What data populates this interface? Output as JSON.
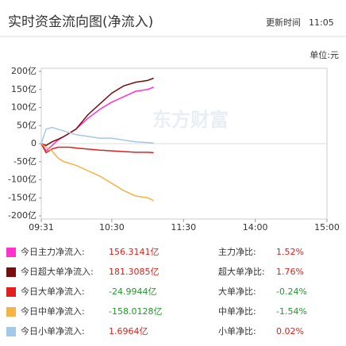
{
  "chart_data": {
    "type": "line",
    "title": "实时资金流向图(净流入)",
    "update_label": "更新时间",
    "update_time": "11:05",
    "unit": "单位:元",
    "watermark": "东方财富",
    "x": [
      "09:31",
      "09:35",
      "09:40",
      "09:45",
      "09:50",
      "09:55",
      "10:00",
      "10:10",
      "10:20",
      "10:30",
      "10:40",
      "10:50",
      "11:00",
      "11:05"
    ],
    "xlim": [
      "09:31",
      "15:00"
    ],
    "xticks": [
      "09:31",
      "10:30",
      "11:30",
      "14:00",
      "15:00"
    ],
    "ylim": [
      -200,
      200
    ],
    "yticks": [
      {
        "value": 200,
        "label": "200亿"
      },
      {
        "value": 150,
        "label": "150亿"
      },
      {
        "value": 100,
        "label": "100亿"
      },
      {
        "value": 50,
        "label": "50亿"
      },
      0,
      {
        "value": -50,
        "label": "-50亿"
      },
      {
        "value": -100,
        "label": "-100亿"
      },
      {
        "value": -150,
        "label": "-150亿"
      },
      {
        "value": -200,
        "label": "-200亿"
      }
    ],
    "positive_color": "#e0201a",
    "negative_color": "#1f9a2a",
    "series": [
      {
        "name": "今日主力净流入:",
        "color": "#ff33cc",
        "values": [
          0,
          -20,
          -5,
          10,
          20,
          30,
          40,
          70,
          95,
          115,
          130,
          145,
          150,
          156.3141
        ],
        "net_inflow": 156.3141,
        "net_inflow_label": "156.3141亿",
        "ratio_name": "主力净比:",
        "ratio": 1.52,
        "ratio_label": "1.52%"
      },
      {
        "name": "今日超大单净流入:",
        "color": "#7a0c0c",
        "values": [
          0,
          -5,
          5,
          12,
          20,
          30,
          40,
          80,
          110,
          140,
          160,
          170,
          175,
          181.3085
        ],
        "net_inflow": 181.3085,
        "net_inflow_label": "181.3085亿",
        "ratio_name": "超大单净比:",
        "ratio": 1.76,
        "ratio_label": "1.76%"
      },
      {
        "name": "今日大单净流入:",
        "color": "#e02020",
        "values": [
          0,
          -25,
          -15,
          -10,
          -10,
          -10,
          -12,
          -15,
          -18,
          -20,
          -22,
          -24,
          -24,
          -24.9944
        ],
        "net_inflow": -24.9944,
        "net_inflow_label": "-24.9944亿",
        "ratio_name": "大单净比:",
        "ratio": -0.24,
        "ratio_label": "-0.24%"
      },
      {
        "name": "今日中单净流入:",
        "color": "#f5b445",
        "values": [
          0,
          -10,
          -20,
          -40,
          -50,
          -55,
          -60,
          -75,
          -90,
          -110,
          -130,
          -145,
          -150,
          -158.0128
        ],
        "net_inflow": -158.0128,
        "net_inflow_label": "-158.0128亿",
        "ratio_name": "中单净比:",
        "ratio": -1.54,
        "ratio_label": "-1.54%"
      },
      {
        "name": "今日小单净流入:",
        "color": "#a4c8ea",
        "values": [
          0,
          40,
          45,
          40,
          35,
          30,
          25,
          20,
          15,
          15,
          10,
          5,
          3,
          1.6964
        ],
        "net_inflow": 1.6964,
        "net_inflow_label": "1.6964亿",
        "ratio_name": "小单净比:",
        "ratio": 0.02,
        "ratio_label": "0.02%"
      }
    ]
  }
}
